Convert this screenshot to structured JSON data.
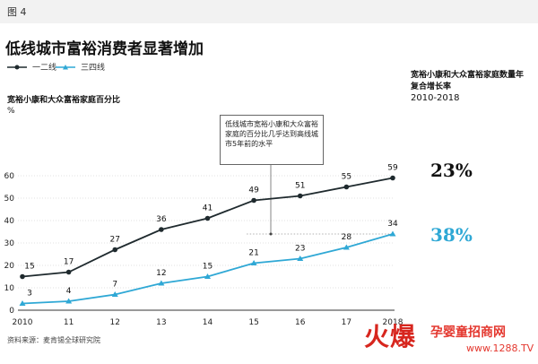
{
  "figure": {
    "label": "图 4",
    "title": "低线城市富裕消费者显著增加"
  },
  "chart_data": {
    "type": "line",
    "title": "低线城市富裕消费者显著增加",
    "ylabel": "宽裕小康和大众富裕家庭百分比",
    "yunit": "%",
    "categories": [
      "2010",
      "11",
      "12",
      "13",
      "14",
      "15",
      "16",
      "17",
      "2018"
    ],
    "ylim": [
      0,
      60
    ],
    "yticks": [
      0,
      10,
      20,
      30,
      40,
      50,
      60
    ],
    "grid": true,
    "legend_position": "top-left",
    "series": [
      {
        "name": "一二线",
        "color": "#1f2a2e",
        "marker": "circle",
        "values": [
          15,
          17,
          27,
          36,
          41,
          49,
          51,
          55,
          59
        ]
      },
      {
        "name": "三四线",
        "color": "#2fa8d5",
        "marker": "triangle",
        "values": [
          3,
          4,
          7,
          12,
          15,
          21,
          23,
          28,
          34
        ]
      }
    ],
    "annotation": {
      "text": "低线城市宽裕小康和大众富裕家庭的百分比几乎达到高线城市5年前的水平",
      "reference_value": 34
    },
    "cagr": {
      "title": "宽裕小康和大众富裕家庭数量年复合增长率",
      "range": "2010-2018",
      "values": [
        {
          "series": "一二线",
          "value": "23%",
          "color": "#111111"
        },
        {
          "series": "三四线",
          "value": "38%",
          "color": "#2fa8d5"
        }
      ]
    }
  },
  "source": "资料来源：麦肯锡全球研究院",
  "watermark": {
    "brand": "火爆",
    "text": "孕婴童招商网",
    "url": "www.1288.TV"
  }
}
